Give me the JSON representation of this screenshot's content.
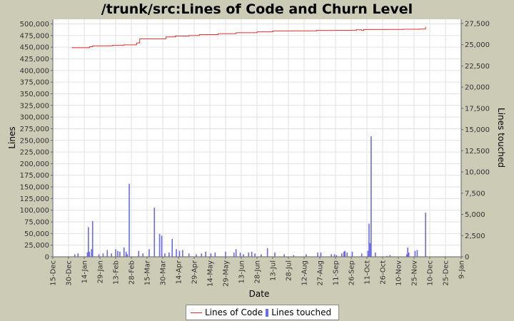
{
  "chart_data": {
    "type": "bar+line",
    "title": "/trunk/src:Lines of Code and Churn Level",
    "xlabel": "Date",
    "ylabel_left": "Lines",
    "ylabel_right": "Lines touched",
    "x_ticks": [
      "15-Dec",
      "30-Dec",
      "14-Jan",
      "29-Jan",
      "13-Feb",
      "28-Feb",
      "15-Mar",
      "30-Mar",
      "14-Apr",
      "29-Apr",
      "14-May",
      "29-May",
      "13-Jun",
      "28-Jun",
      "13-Jul",
      "28-Jul",
      "12-Aug",
      "27-Aug",
      "11-Sep",
      "26-Sep",
      "11-Oct",
      "26-Oct",
      "10-Nov",
      "25-Nov",
      "10-Dec",
      "25-Dec",
      "9-Jan"
    ],
    "x_range_days": [
      0,
      390
    ],
    "y_left_range": [
      0,
      510000
    ],
    "y_left_ticks": [
      0,
      25000,
      50000,
      75000,
      100000,
      125000,
      150000,
      175000,
      200000,
      225000,
      250000,
      275000,
      300000,
      325000,
      350000,
      375000,
      400000,
      425000,
      450000,
      475000,
      500000
    ],
    "y_right_range": [
      0,
      28000
    ],
    "y_right_ticks": [
      0,
      2500,
      5000,
      7500,
      10000,
      12500,
      15000,
      17500,
      20000,
      22500,
      25000,
      27500
    ],
    "grid": true,
    "legend_position": "bottom",
    "series": [
      {
        "name": "Lines of Code",
        "color": "#e03030",
        "type": "step-line",
        "points": [
          [
            18,
            449000
          ],
          [
            35,
            451000
          ],
          [
            38,
            453000
          ],
          [
            57,
            454000
          ],
          [
            68,
            455000
          ],
          [
            80,
            459000
          ],
          [
            83,
            468000
          ],
          [
            108,
            472000
          ],
          [
            117,
            474000
          ],
          [
            130,
            475000
          ],
          [
            140,
            477000
          ],
          [
            158,
            479000
          ],
          [
            175,
            481000
          ],
          [
            195,
            483000
          ],
          [
            210,
            485000
          ],
          [
            230,
            485200
          ],
          [
            252,
            486000
          ],
          [
            270,
            486300
          ],
          [
            285,
            486500
          ],
          [
            290,
            487500
          ],
          [
            295,
            486000
          ],
          [
            297,
            488000
          ],
          [
            320,
            488200
          ],
          [
            335,
            488500
          ],
          [
            350,
            489000
          ],
          [
            356,
            494000
          ]
        ]
      },
      {
        "name": "Lines touched",
        "color": "#6a6af0",
        "type": "bar",
        "points": [
          [
            21,
            300
          ],
          [
            24,
            400
          ],
          [
            33,
            500
          ],
          [
            34,
            3500
          ],
          [
            35,
            600
          ],
          [
            37,
            900
          ],
          [
            38,
            4200
          ],
          [
            44,
            300
          ],
          [
            48,
            400
          ],
          [
            52,
            800
          ],
          [
            56,
            400
          ],
          [
            60,
            900
          ],
          [
            62,
            700
          ],
          [
            64,
            600
          ],
          [
            68,
            1100
          ],
          [
            70,
            600
          ],
          [
            71,
            300
          ],
          [
            73,
            8600
          ],
          [
            82,
            700
          ],
          [
            86,
            400
          ],
          [
            92,
            900
          ],
          [
            97,
            5800
          ],
          [
            102,
            2700
          ],
          [
            104,
            2500
          ],
          [
            107,
            400
          ],
          [
            111,
            500
          ],
          [
            114,
            2100
          ],
          [
            118,
            900
          ],
          [
            121,
            700
          ],
          [
            124,
            800
          ],
          [
            130,
            400
          ],
          [
            137,
            300
          ],
          [
            142,
            400
          ],
          [
            146,
            600
          ],
          [
            151,
            400
          ],
          [
            155,
            500
          ],
          [
            165,
            600
          ],
          [
            173,
            500
          ],
          [
            175,
            900
          ],
          [
            179,
            500
          ],
          [
            182,
            300
          ],
          [
            187,
            500
          ],
          [
            190,
            600
          ],
          [
            193,
            400
          ],
          [
            199,
            300
          ],
          [
            205,
            1000
          ],
          [
            212,
            500
          ],
          [
            221,
            300
          ],
          [
            230,
            200
          ],
          [
            242,
            300
          ],
          [
            253,
            500
          ],
          [
            256,
            500
          ],
          [
            266,
            300
          ],
          [
            269,
            300
          ],
          [
            271,
            200
          ],
          [
            276,
            400
          ],
          [
            278,
            600
          ],
          [
            279,
            700
          ],
          [
            281,
            500
          ],
          [
            286,
            600
          ],
          [
            295,
            400
          ],
          [
            301,
            700
          ],
          [
            302,
            3900
          ],
          [
            303,
            1600
          ],
          [
            304,
            14200
          ],
          [
            308,
            500
          ],
          [
            319,
            100
          ],
          [
            322,
            200
          ],
          [
            338,
            300
          ],
          [
            339,
            1100
          ],
          [
            340,
            500
          ],
          [
            346,
            700
          ],
          [
            348,
            800
          ],
          [
            356,
            5200
          ]
        ]
      }
    ]
  }
}
